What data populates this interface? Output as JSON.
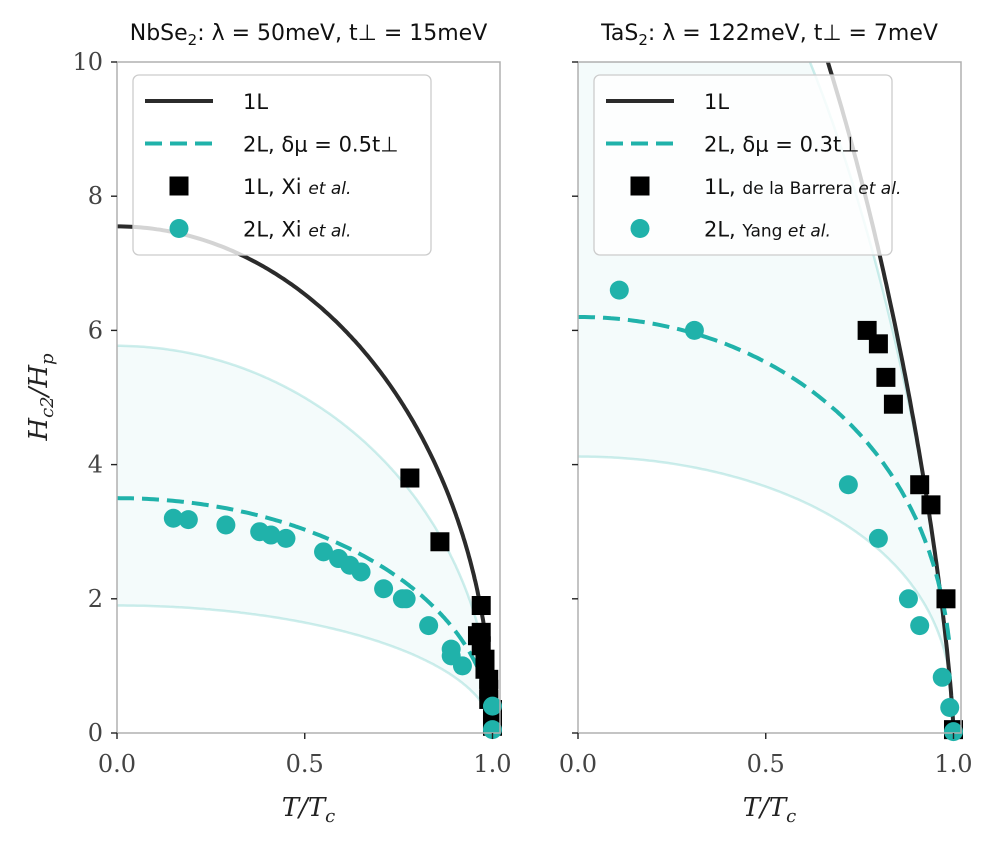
{
  "colors": {
    "one_layer": "#2b2b2b",
    "two_layer": "#20b2aa",
    "band": "#20b2aa",
    "axes": "#b0b0b0",
    "text": "#222222"
  },
  "y_label": "H_c2/H_p",
  "chart_data": [
    {
      "type": "line",
      "title_material": "NbSe",
      "title_subscript": "2",
      "title_params": ": λ = 50meV, t⊥ = 15meV",
      "xlabel": "T/T_c",
      "ylabel": "H_c2/H_p",
      "xlim": [
        0,
        1.02
      ],
      "ylim": [
        0,
        10
      ],
      "xticks": [
        "0.0",
        "0.5",
        "1.0"
      ],
      "yticks": [
        "0",
        "2",
        "4",
        "6",
        "8",
        "10"
      ],
      "legend": [
        "1L",
        "2L, δμ = 0.5t⊥",
        "1L, Xi et al.",
        "2L, Xi et al."
      ],
      "legend_position": "top",
      "series": [
        {
          "name": "1L",
          "style": "solid",
          "H0": 7.55,
          "p": 1.0
        },
        {
          "name": "2L",
          "style": "dashed",
          "H0": 3.5,
          "p": 1.0,
          "tmax": 1.0
        },
        {
          "name": "band_upper",
          "style": "band",
          "H0": 5.77,
          "p": 1.0
        },
        {
          "name": "band_lower",
          "style": "band",
          "H0": 1.9,
          "p": 1.0
        }
      ],
      "squares": [
        [
          0.78,
          3.8
        ],
        [
          0.86,
          2.85
        ],
        [
          0.97,
          1.9
        ],
        [
          0.97,
          1.5
        ],
        [
          0.96,
          1.45
        ],
        [
          0.97,
          1.3
        ],
        [
          0.98,
          1.1
        ],
        [
          0.98,
          0.95
        ],
        [
          0.99,
          0.8
        ],
        [
          0.99,
          0.65
        ],
        [
          0.99,
          0.5
        ],
        [
          1.0,
          0.35
        ],
        [
          1.0,
          0.2
        ],
        [
          1.0,
          0.1
        ]
      ],
      "circles": [
        [
          0.15,
          3.2
        ],
        [
          0.19,
          3.18
        ],
        [
          0.29,
          3.1
        ],
        [
          0.38,
          3.0
        ],
        [
          0.41,
          2.95
        ],
        [
          0.45,
          2.9
        ],
        [
          0.55,
          2.7
        ],
        [
          0.59,
          2.6
        ],
        [
          0.62,
          2.5
        ],
        [
          0.65,
          2.4
        ],
        [
          0.71,
          2.15
        ],
        [
          0.76,
          2.0
        ],
        [
          0.77,
          2.0
        ],
        [
          0.83,
          1.6
        ],
        [
          0.89,
          1.25
        ],
        [
          0.89,
          1.15
        ],
        [
          0.92,
          1.0
        ],
        [
          1.0,
          0.4
        ],
        [
          1.0,
          0.05
        ]
      ]
    },
    {
      "type": "line",
      "title_material": "TaS",
      "title_subscript": "2",
      "title_params": ": λ = 122meV, t⊥ = 7meV",
      "xlabel": "T/T_c",
      "ylabel": "H_c2/H_p",
      "xlim": [
        0,
        1.02
      ],
      "ylim": [
        0,
        10
      ],
      "xticks": [
        "0.0",
        "0.5",
        "1.0"
      ],
      "yticks": [
        "0",
        "2",
        "4",
        "6",
        "8",
        "10"
      ],
      "legend": [
        "1L",
        "2L, δμ = 0.3t⊥",
        "1L, de la Barrera et al.",
        "2L, Yang et al."
      ],
      "legend_position": "top",
      "series": [
        {
          "name": "1L",
          "style": "solid",
          "H0": 15.5,
          "p": 1.5
        },
        {
          "name": "2L",
          "style": "dashed",
          "H0": 6.2,
          "p": 0.8,
          "tmax": 0.99
        },
        {
          "name": "band_upper",
          "style": "band",
          "H0": 14.0,
          "p": 1.4
        },
        {
          "name": "band_lower",
          "style": "band",
          "H0": 4.12,
          "p": 0.8
        }
      ],
      "squares": [
        [
          0.77,
          6.0
        ],
        [
          0.8,
          5.8
        ],
        [
          0.82,
          5.3
        ],
        [
          0.84,
          4.9
        ],
        [
          0.91,
          3.7
        ],
        [
          0.94,
          3.4
        ],
        [
          0.98,
          2.0
        ],
        [
          1.0,
          0.05
        ]
      ],
      "circles": [
        [
          0.11,
          6.6
        ],
        [
          0.31,
          6.0
        ],
        [
          0.72,
          3.7
        ],
        [
          0.8,
          2.9
        ],
        [
          0.88,
          2.0
        ],
        [
          0.91,
          1.6
        ],
        [
          0.97,
          0.83
        ],
        [
          0.99,
          0.38
        ],
        [
          1.0,
          0.02
        ]
      ]
    }
  ]
}
